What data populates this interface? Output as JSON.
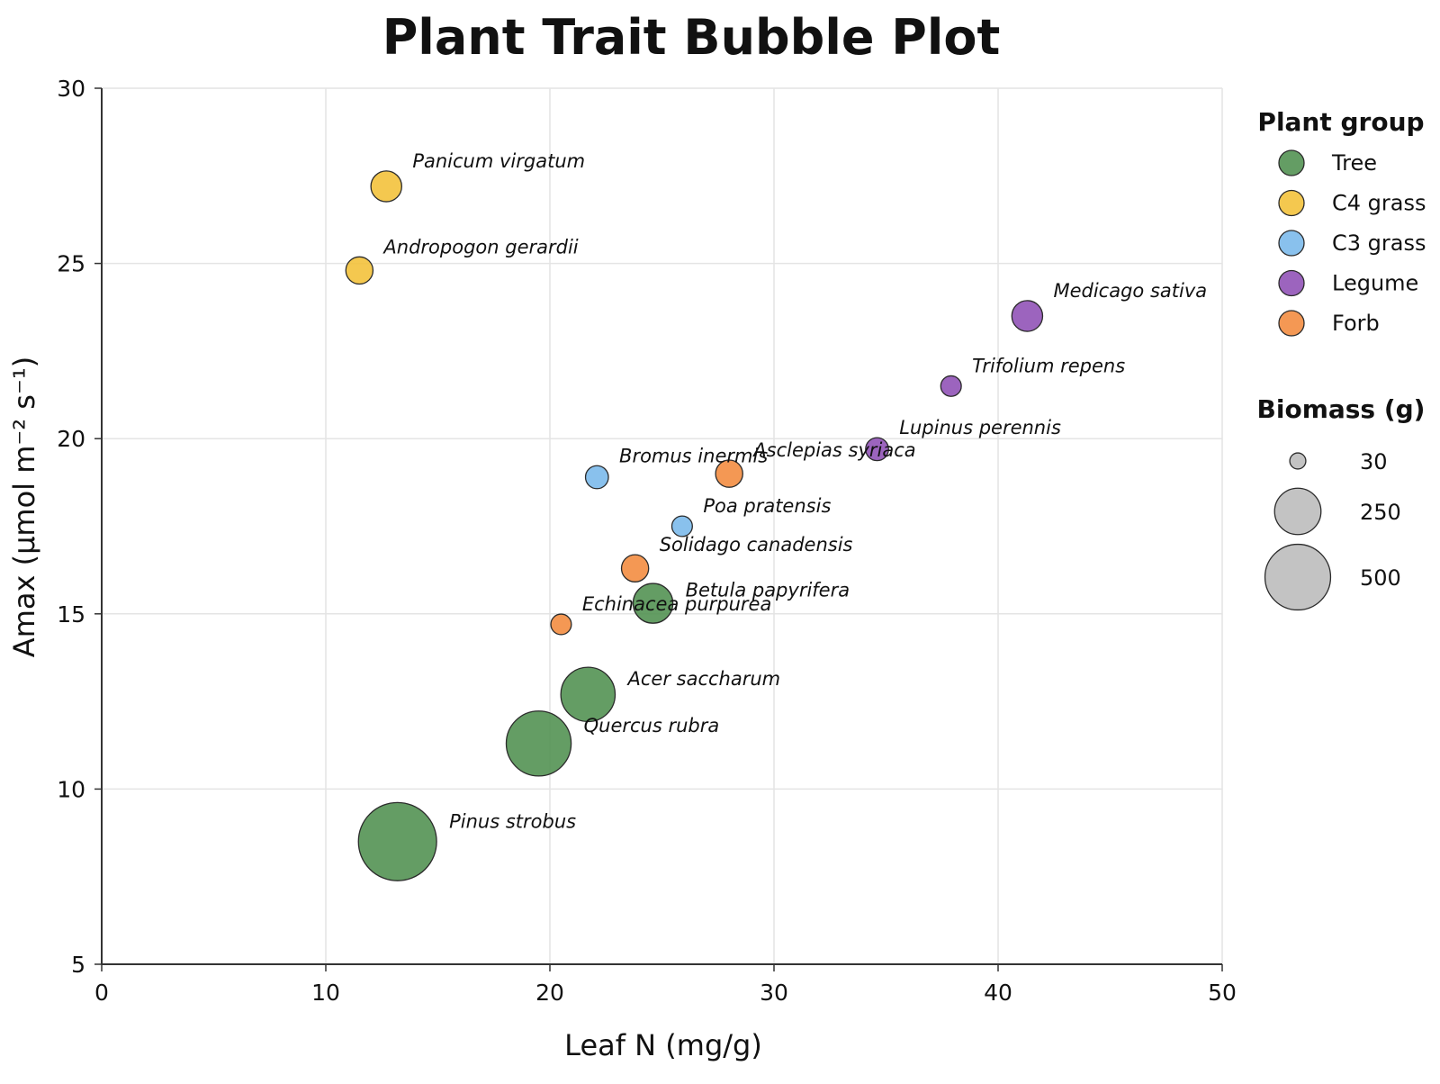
{
  "chart_data": {
    "type": "scatter",
    "title": "Plant Trait Bubble Plot",
    "xlabel": "Leaf N (mg/g)",
    "ylabel": "Amax (µmol m⁻² s⁻¹)",
    "xlim": [
      0,
      50
    ],
    "ylim": [
      5,
      30
    ],
    "x_ticks": [
      0,
      10,
      20,
      30,
      40,
      50
    ],
    "y_ticks": [
      5,
      10,
      15,
      20,
      25,
      30
    ],
    "grid": true,
    "size_variable": "Biomass (g)",
    "groups": [
      {
        "name": "Tree",
        "color": "#4f8f4f"
      },
      {
        "name": "C4 grass",
        "color": "#f2c037"
      },
      {
        "name": "C3 grass",
        "color": "#79b8ea"
      },
      {
        "name": "Legume",
        "color": "#8e4fb5"
      },
      {
        "name": "Forb",
        "color": "#f28a3c"
      }
    ],
    "points": [
      {
        "label": "Panicum virgatum",
        "group": "C4 grass",
        "x": 12.7,
        "y": 27.2,
        "size": 45
      },
      {
        "label": "Andropogon gerardii",
        "group": "C4 grass",
        "x": 11.5,
        "y": 24.8,
        "size": 35
      },
      {
        "label": "Medicago sativa",
        "group": "Legume",
        "x": 41.3,
        "y": 23.5,
        "size": 45
      },
      {
        "label": "Trifolium repens",
        "group": "Legume",
        "x": 37.9,
        "y": 21.5,
        "size": 20
      },
      {
        "label": "Lupinus perennis",
        "group": "Legume",
        "x": 34.6,
        "y": 19.7,
        "size": 25
      },
      {
        "label": "Bromus inermis",
        "group": "C3 grass",
        "x": 22.1,
        "y": 18.9,
        "size": 25
      },
      {
        "label": "Asclepias syriaca",
        "group": "Forb",
        "x": 28.0,
        "y": 19.0,
        "size": 35
      },
      {
        "label": "Poa pratensis",
        "group": "C3 grass",
        "x": 25.9,
        "y": 17.5,
        "size": 20
      },
      {
        "label": "Solidago canadensis",
        "group": "Forb",
        "x": 23.8,
        "y": 16.3,
        "size": 35
      },
      {
        "label": "Betula papyrifera",
        "group": "Tree",
        "x": 24.6,
        "y": 15.3,
        "size": 75
      },
      {
        "label": "Echinacea purpurea",
        "group": "Forb",
        "x": 20.5,
        "y": 14.7,
        "size": 20
      },
      {
        "label": "Acer saccharum",
        "group": "Tree",
        "x": 21.7,
        "y": 12.7,
        "size": 140
      },
      {
        "label": "Quercus rubra",
        "group": "Tree",
        "x": 19.5,
        "y": 11.3,
        "size": 200
      },
      {
        "label": "Pinus strobus",
        "group": "Tree",
        "x": 13.2,
        "y": 8.5,
        "size": 290
      }
    ],
    "legend": {
      "placement": "right",
      "group_title": "Plant group",
      "size_title": "Biomass (g)",
      "size_entries": [
        30,
        250,
        500
      ]
    }
  }
}
